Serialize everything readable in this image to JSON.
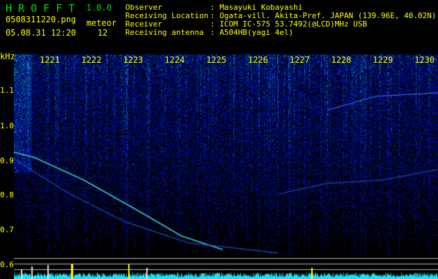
{
  "header": {
    "app_name": "H R O F F T",
    "version": "1.0.0",
    "filename": "0508311220.png",
    "datetime": "05.08.31 12:20",
    "meteor_label": "meteor",
    "meteor_count": "12"
  },
  "info": {
    "observer_label": "Observer",
    "observer_value": ": Masayuki Kobayashi",
    "location_label": "Receiving Location",
    "location_value": ": Ogata-vill. Akita-Pref. JAPAN (139.96E, 40.02N)",
    "receiver_label": "Receiver",
    "receiver_value": ": ICOM IC-575 53.7492(@LCD)MHz USB",
    "antenna_label": "Receiving antenna",
    "antenna_value": ": A504HB(yagi 4el)"
  },
  "spectrogram": {
    "y_unit": "kHz",
    "y_ticks": [
      "1.1",
      "1.0",
      "0.9",
      "0.8",
      "0.7",
      "0.6"
    ],
    "time_ticks": [
      "1221",
      "1222",
      "1223",
      "1224",
      "1225",
      "1226",
      "1227",
      "1228",
      "1229",
      "1230"
    ],
    "colors": {
      "background": "#000000",
      "text": "#ffff00",
      "logo": "#00e000",
      "noise_low": "#0a1aa0",
      "noise_high": "#20e0e0"
    }
  }
}
